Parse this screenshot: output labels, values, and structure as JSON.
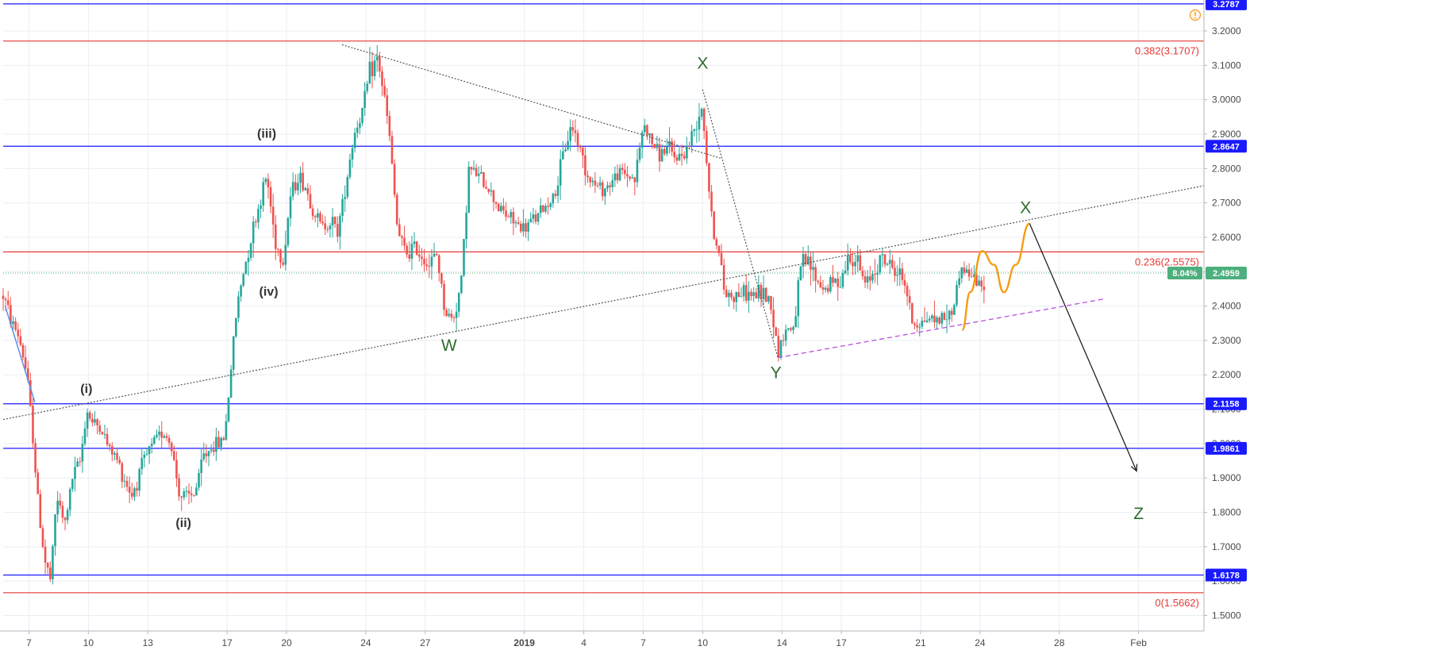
{
  "chart_data": {
    "type": "candlestick",
    "x_ticks": [
      {
        "label": "7",
        "day": 7
      },
      {
        "label": "10",
        "day": 10
      },
      {
        "label": "13",
        "day": 13
      },
      {
        "label": "17",
        "day": 17
      },
      {
        "label": "20",
        "day": 20
      },
      {
        "label": "24",
        "day": 24
      },
      {
        "label": "27",
        "day": 27
      },
      {
        "label": "2019",
        "day": 32,
        "bold": true
      },
      {
        "label": "4",
        "day": 35
      },
      {
        "label": "7",
        "day": 38
      },
      {
        "label": "10",
        "day": 41
      },
      {
        "label": "14",
        "day": 45
      },
      {
        "label": "17",
        "day": 48
      },
      {
        "label": "21",
        "day": 52
      },
      {
        "label": "24",
        "day": 55
      },
      {
        "label": "28",
        "day": 59
      },
      {
        "label": "Feb",
        "day": 63
      }
    ],
    "x_range": [
      5.7,
      66.3
    ],
    "ylim": [
      1.455,
      3.29
    ],
    "y_ticks": [
      "1.5000",
      "1.6000",
      "1.7000",
      "1.8000",
      "1.9000",
      "2.0000",
      "2.1000",
      "2.2000",
      "2.3000",
      "2.4000",
      "2.5000",
      "2.6000",
      "2.7000",
      "2.8000",
      "2.9000",
      "3.0000",
      "3.1000",
      "3.2000"
    ],
    "horizontal_levels": [
      {
        "value": 3.2787,
        "label": "3.2787",
        "color": "#1a1aff",
        "style": "blue"
      },
      {
        "value": 2.8647,
        "label": "2.8647",
        "color": "#1a1aff",
        "style": "blue"
      },
      {
        "value": 2.1158,
        "label": "2.1158",
        "color": "#1a1aff",
        "style": "blue"
      },
      {
        "value": 1.9861,
        "label": "1.9861",
        "color": "#1a1aff",
        "style": "blue"
      },
      {
        "value": 1.6178,
        "label": "1.6178",
        "color": "#1a1aff",
        "style": "blue"
      }
    ],
    "fib_levels": [
      {
        "value": 3.1707,
        "label": "0.382(3.1707)",
        "color": "#e53935"
      },
      {
        "value": 2.5575,
        "label": "0.236(2.5575)",
        "color": "#e53935"
      },
      {
        "value": 1.5662,
        "label": "0(1.5662)",
        "color": "#e53935"
      }
    ],
    "last_price": {
      "value": 2.4959,
      "label": "2.4959",
      "change_label": "8.04%",
      "color": "#4caf7d"
    },
    "colors": {
      "up": "#26a69a",
      "down": "#ef5350",
      "grid": "#e9eef3",
      "blue_line": "#1a1aff",
      "fib_line": "#e53935",
      "orange_path": "#f39c12",
      "trend_dotted": "#555555",
      "channel_dashed": "#b84fe0",
      "arrow": "#222222",
      "green_label": "#2e6b2e"
    },
    "price_path": [
      [
        5.7,
        2.43
      ],
      [
        6.1,
        2.36
      ],
      [
        6.5,
        2.31
      ],
      [
        6.9,
        2.2
      ],
      [
        7.2,
        2.02
      ],
      [
        7.5,
        1.8
      ],
      [
        7.8,
        1.66
      ],
      [
        8.1,
        1.6
      ],
      [
        8.4,
        1.85
      ],
      [
        8.8,
        1.76
      ],
      [
        9.2,
        1.9
      ],
      [
        9.6,
        1.95
      ],
      [
        9.9,
        2.1
      ],
      [
        10.2,
        2.06
      ],
      [
        10.6,
        2.05
      ],
      [
        11.0,
        1.99
      ],
      [
        11.4,
        1.96
      ],
      [
        11.8,
        1.9
      ],
      [
        12.2,
        1.85
      ],
      [
        12.6,
        1.92
      ],
      [
        13.0,
        1.97
      ],
      [
        13.4,
        2.01
      ],
      [
        13.8,
        2.04
      ],
      [
        14.2,
        1.99
      ],
      [
        14.6,
        1.85
      ],
      [
        15.0,
        1.84
      ],
      [
        15.4,
        1.86
      ],
      [
        15.8,
        1.96
      ],
      [
        16.2,
        1.99
      ],
      [
        16.6,
        2.0
      ],
      [
        16.9,
        2.03
      ],
      [
        17.2,
        2.22
      ],
      [
        17.5,
        2.4
      ],
      [
        17.8,
        2.49
      ],
      [
        18.2,
        2.6
      ],
      [
        18.6,
        2.69
      ],
      [
        19.0,
        2.78
      ],
      [
        19.4,
        2.6
      ],
      [
        19.8,
        2.52
      ],
      [
        20.2,
        2.72
      ],
      [
        20.6,
        2.78
      ],
      [
        21.0,
        2.74
      ],
      [
        21.4,
        2.67
      ],
      [
        21.8,
        2.63
      ],
      [
        22.2,
        2.65
      ],
      [
        22.6,
        2.62
      ],
      [
        23.0,
        2.76
      ],
      [
        23.4,
        2.9
      ],
      [
        23.8,
        2.96
      ],
      [
        24.2,
        3.08
      ],
      [
        24.6,
        3.12
      ],
      [
        24.9,
        3.02
      ],
      [
        25.2,
        2.89
      ],
      [
        25.6,
        2.62
      ],
      [
        26.0,
        2.55
      ],
      [
        26.4,
        2.57
      ],
      [
        26.8,
        2.55
      ],
      [
        27.2,
        2.52
      ],
      [
        27.6,
        2.55
      ],
      [
        28.0,
        2.38
      ],
      [
        28.4,
        2.36
      ],
      [
        28.8,
        2.46
      ],
      [
        29.2,
        2.8
      ],
      [
        29.6,
        2.78
      ],
      [
        30.0,
        2.76
      ],
      [
        30.4,
        2.72
      ],
      [
        30.8,
        2.68
      ],
      [
        31.2,
        2.66
      ],
      [
        31.6,
        2.64
      ],
      [
        32.0,
        2.62
      ],
      [
        32.4,
        2.65
      ],
      [
        32.8,
        2.67
      ],
      [
        33.2,
        2.7
      ],
      [
        33.6,
        2.73
      ],
      [
        34.0,
        2.85
      ],
      [
        34.4,
        2.93
      ],
      [
        34.8,
        2.86
      ],
      [
        35.2,
        2.78
      ],
      [
        35.6,
        2.75
      ],
      [
        36.0,
        2.74
      ],
      [
        36.4,
        2.76
      ],
      [
        36.8,
        2.79
      ],
      [
        37.2,
        2.78
      ],
      [
        37.6,
        2.77
      ],
      [
        38.0,
        2.93
      ],
      [
        38.4,
        2.88
      ],
      [
        38.8,
        2.84
      ],
      [
        39.2,
        2.86
      ],
      [
        39.6,
        2.83
      ],
      [
        40.0,
        2.84
      ],
      [
        40.4,
        2.88
      ],
      [
        40.8,
        2.96
      ],
      [
        41.0,
        2.99
      ],
      [
        41.2,
        2.82
      ],
      [
        41.5,
        2.63
      ],
      [
        41.8,
        2.56
      ],
      [
        42.1,
        2.44
      ],
      [
        42.5,
        2.43
      ],
      [
        43.0,
        2.44
      ],
      [
        43.5,
        2.43
      ],
      [
        44.0,
        2.44
      ],
      [
        44.4,
        2.42
      ],
      [
        44.8,
        2.27
      ],
      [
        45.2,
        2.33
      ],
      [
        45.6,
        2.34
      ],
      [
        46.0,
        2.53
      ],
      [
        46.4,
        2.52
      ],
      [
        46.8,
        2.47
      ],
      [
        47.2,
        2.45
      ],
      [
        47.6,
        2.47
      ],
      [
        48.0,
        2.48
      ],
      [
        48.4,
        2.55
      ],
      [
        48.8,
        2.53
      ],
      [
        49.2,
        2.46
      ],
      [
        49.6,
        2.5
      ],
      [
        50.0,
        2.54
      ],
      [
        50.4,
        2.52
      ],
      [
        50.8,
        2.5
      ],
      [
        51.2,
        2.47
      ],
      [
        51.6,
        2.35
      ],
      [
        52.0,
        2.35
      ],
      [
        52.4,
        2.37
      ],
      [
        52.8,
        2.36
      ],
      [
        53.2,
        2.37
      ],
      [
        53.6,
        2.38
      ],
      [
        54.0,
        2.51
      ],
      [
        54.4,
        2.5
      ],
      [
        54.8,
        2.47
      ],
      [
        55.1,
        2.45
      ],
      [
        55.3,
        2.4959
      ]
    ]
  },
  "levels_ui": {
    "alert_icon": "alert-circle-icon"
  },
  "annotations": {
    "waves": [
      {
        "text": "(i)",
        "day": 9.9,
        "price": 2.148,
        "style": "bold"
      },
      {
        "text": "(ii)",
        "day": 14.8,
        "price": 1.757,
        "style": "bold"
      },
      {
        "text": "(iii)",
        "day": 19.0,
        "price": 2.89,
        "style": "bold"
      },
      {
        "text": "(iv)",
        "day": 19.1,
        "price": 2.43,
        "style": "bold"
      },
      {
        "text": "W",
        "day": 28.2,
        "price": 2.27,
        "style": "green"
      },
      {
        "text": "X",
        "day": 41.0,
        "price": 3.09,
        "style": "green"
      },
      {
        "text": "Y",
        "day": 44.7,
        "price": 2.19,
        "style": "green"
      },
      {
        "text": "X",
        "day": 57.3,
        "price": 2.67,
        "style": "green"
      },
      {
        "text": "Z",
        "day": 63.0,
        "price": 1.78,
        "style": "green"
      }
    ],
    "orange_projection": [
      [
        54.1,
        2.33
      ],
      [
        54.5,
        2.44
      ],
      [
        55.1,
        2.56
      ],
      [
        55.7,
        2.52
      ],
      [
        56.2,
        2.44
      ],
      [
        56.8,
        2.52
      ],
      [
        57.5,
        2.64
      ]
    ],
    "black_arrow": [
      [
        57.5,
        2.64
      ],
      [
        62.9,
        1.92
      ]
    ],
    "dotted_upper_trend": [
      [
        22.8,
        3.16
      ],
      [
        41.9,
        2.83
      ]
    ],
    "dotted_x_to_y": [
      [
        41.0,
        3.03
      ],
      [
        44.8,
        2.25
      ]
    ],
    "dotted_long_trend": [
      [
        5.7,
        2.07
      ],
      [
        66.3,
        2.75
      ]
    ],
    "dashed_channel": [
      [
        44.8,
        2.25
      ],
      [
        61.2,
        2.42
      ]
    ],
    "blue_diagonal": [
      [
        5.8,
        2.4
      ],
      [
        7.3,
        2.12
      ]
    ]
  }
}
